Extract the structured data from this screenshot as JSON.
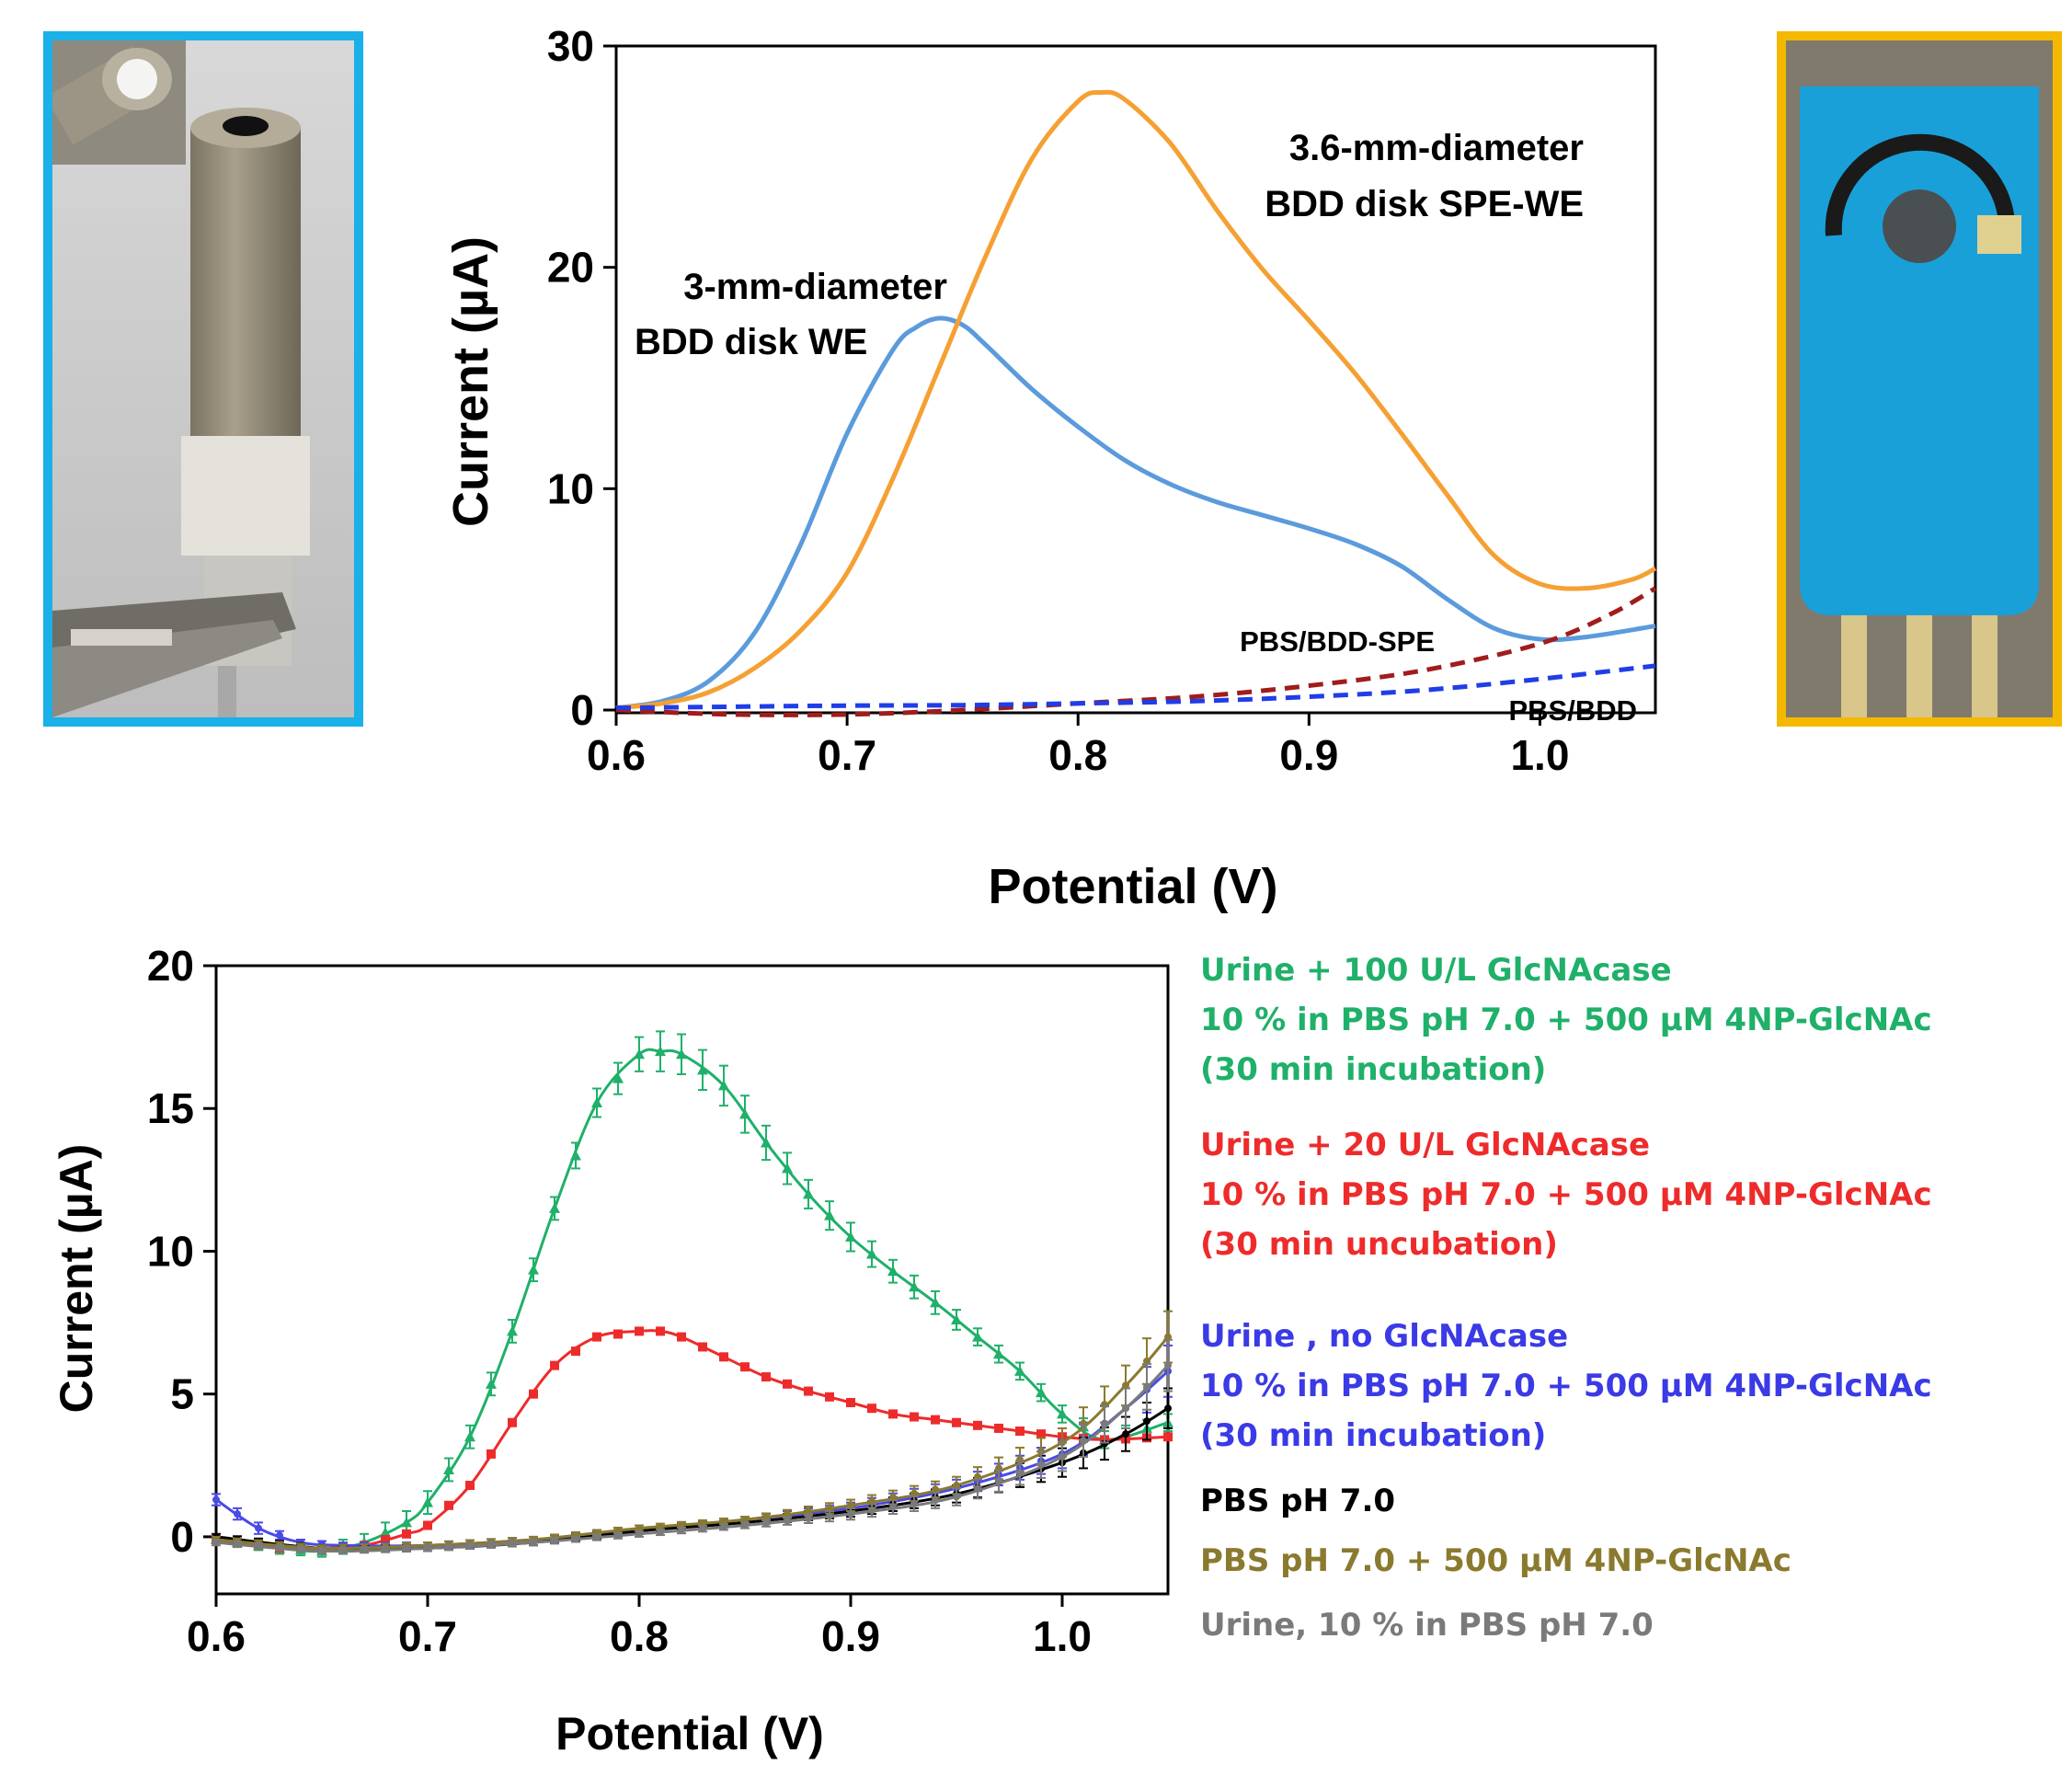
{
  "colors": {
    "left_frame": "#1ab0e8",
    "right_frame": "#f5b800",
    "bdd_we": "#5b9bdc",
    "bdd_spe": "#f5a033",
    "pbs_bdd_spe": "#a11c1c",
    "pbs_bdd": "#1f3de8",
    "urine_100": "#1fb06a",
    "urine_20": "#ee2b2b",
    "urine_no": "#4a4ae8",
    "pbs": "#000000",
    "pbs_np": "#8a7a2e",
    "urine_pbs": "#7a7a7a"
  },
  "legend": {
    "l1": "Urine + 100 U/L GlcNAcase",
    "l2": "10 % in PBS pH 7.0 + 500 µM 4NP-GlcNAc",
    "l3": "(30 min incubation)",
    "l4": "Urine + 20 U/L GlcNAcase",
    "l5": "10 % in PBS pH 7.0 + 500  µM 4NP-GlcNAc",
    "l6": "(30 min uncubation)",
    "l7": "Urine , no GlcNAcase",
    "l8": "10 % in PBS pH 7.0 + 500  µM 4NP-GlcNAc",
    "l9": "(30 min incubation)",
    "l10": "PBS pH 7.0",
    "l11": "PBS pH 7.0 + 500  µM 4NP-GlcNAc",
    "l12": "Urine, 10 % in PBS pH 7.0"
  },
  "chart_data": [
    {
      "type": "line",
      "xlabel": "Potential (V)",
      "ylabel": "Current (µA)",
      "xlim": [
        0.6,
        1.05
      ],
      "ylim": [
        0,
        30
      ],
      "xticks": [
        "0.6",
        "0.7",
        "0.8",
        "0.9",
        "1.0"
      ],
      "yticks": [
        "0",
        "10",
        "20",
        "30"
      ],
      "annotations": {
        "we_line1": "3-mm-diameter",
        "we_line2": "BDD disk WE",
        "spe_line1": "3.6-mm-diameter",
        "spe_line2": "BDD disk SPE-WE",
        "pbs_spe": "PBS/BDD-SPE",
        "pbs_bdd": "PBS/BDD"
      },
      "series": [
        {
          "name": "3-mm-diameter BDD disk WE",
          "style": "solid",
          "x": [
            0.6,
            0.62,
            0.64,
            0.66,
            0.68,
            0.7,
            0.72,
            0.73,
            0.74,
            0.75,
            0.76,
            0.78,
            0.8,
            0.82,
            0.84,
            0.86,
            0.88,
            0.9,
            0.92,
            0.94,
            0.96,
            0.98,
            1.0,
            1.02,
            1.05
          ],
          "y": [
            0.1,
            0.4,
            1.3,
            3.5,
            7.5,
            12.5,
            16.3,
            17.3,
            17.7,
            17.4,
            16.5,
            14.5,
            12.8,
            11.3,
            10.2,
            9.4,
            8.8,
            8.2,
            7.5,
            6.5,
            5.0,
            3.7,
            3.2,
            3.3,
            3.8
          ]
        },
        {
          "name": "3.6-mm-diameter BDD disk SPE-WE",
          "style": "solid",
          "x": [
            0.6,
            0.62,
            0.64,
            0.66,
            0.68,
            0.7,
            0.72,
            0.74,
            0.76,
            0.78,
            0.8,
            0.81,
            0.82,
            0.84,
            0.86,
            0.88,
            0.9,
            0.92,
            0.94,
            0.96,
            0.98,
            1.0,
            1.02,
            1.04,
            1.05
          ],
          "y": [
            0.1,
            0.3,
            0.8,
            1.9,
            3.6,
            6.2,
            10.5,
            15.5,
            20.5,
            24.9,
            27.5,
            27.9,
            27.6,
            25.6,
            22.6,
            19.9,
            17.6,
            15.2,
            12.5,
            9.7,
            7.0,
            5.7,
            5.5,
            5.9,
            6.4
          ]
        },
        {
          "name": "PBS/BDD-SPE",
          "style": "dashed",
          "x": [
            0.6,
            0.65,
            0.7,
            0.75,
            0.8,
            0.85,
            0.9,
            0.95,
            1.0,
            1.03,
            1.05
          ],
          "y": [
            0.0,
            -0.2,
            -0.2,
            0.0,
            0.3,
            0.6,
            1.1,
            1.8,
            3.0,
            4.3,
            5.5
          ]
        },
        {
          "name": "PBS/BDD",
          "style": "dashed",
          "x": [
            0.6,
            0.65,
            0.7,
            0.75,
            0.8,
            0.85,
            0.9,
            0.95,
            1.0,
            1.05
          ],
          "y": [
            0.1,
            0.15,
            0.2,
            0.22,
            0.3,
            0.4,
            0.6,
            0.9,
            1.4,
            2.0
          ]
        }
      ]
    },
    {
      "type": "line",
      "xlabel": "Potential (V)",
      "ylabel": "Current (µA)",
      "xlim": [
        0.6,
        1.05
      ],
      "ylim": [
        -2,
        20
      ],
      "xticks": [
        "0.6",
        "0.7",
        "0.8",
        "0.9",
        "1.0"
      ],
      "yticks": [
        "0",
        "5",
        "10",
        "15",
        "20"
      ],
      "series": [
        {
          "name": "Urine + 100 U/L GlcNAcase",
          "marker": "triangle",
          "x": [
            0.6,
            0.63,
            0.65,
            0.67,
            0.69,
            0.7,
            0.72,
            0.74,
            0.76,
            0.78,
            0.8,
            0.81,
            0.82,
            0.84,
            0.86,
            0.88,
            0.9,
            0.92,
            0.94,
            0.96,
            0.98,
            1.0,
            1.02,
            1.05
          ],
          "y": [
            -0.1,
            -0.4,
            -0.5,
            -0.2,
            0.5,
            1.2,
            3.5,
            7.2,
            11.5,
            15.2,
            16.9,
            17.0,
            16.9,
            15.8,
            13.8,
            12.0,
            10.5,
            9.3,
            8.2,
            7.0,
            5.8,
            4.3,
            3.4,
            4.0
          ],
          "err": [
            0.1,
            0.2,
            0.2,
            0.3,
            0.4,
            0.4,
            0.4,
            0.4,
            0.4,
            0.5,
            0.6,
            0.7,
            0.7,
            0.7,
            0.6,
            0.5,
            0.5,
            0.4,
            0.4,
            0.3,
            0.3,
            0.3,
            0.3,
            0.3
          ]
        },
        {
          "name": "Urine + 20 U/L GlcNAcase",
          "marker": "square",
          "x": [
            0.6,
            0.63,
            0.65,
            0.67,
            0.69,
            0.7,
            0.72,
            0.74,
            0.76,
            0.78,
            0.8,
            0.81,
            0.82,
            0.84,
            0.86,
            0.88,
            0.9,
            0.92,
            0.94,
            0.96,
            0.98,
            1.0,
            1.02,
            1.05
          ],
          "y": [
            -0.1,
            -0.4,
            -0.4,
            -0.3,
            0.1,
            0.4,
            1.8,
            4.0,
            6.0,
            7.0,
            7.2,
            7.2,
            7.0,
            6.3,
            5.6,
            5.1,
            4.7,
            4.3,
            4.1,
            3.9,
            3.7,
            3.5,
            3.4,
            3.5
          ],
          "err": [
            0.1,
            0.1,
            0.1,
            0.1,
            0.1,
            0.1,
            0.1,
            0.1,
            0.1,
            0.1,
            0.1,
            0.1,
            0.1,
            0.1,
            0.1,
            0.1,
            0.1,
            0.1,
            0.1,
            0.1,
            0.1,
            0.1,
            0.1,
            0.1
          ]
        },
        {
          "name": "Urine , no GlcNAcase",
          "marker": "circle",
          "x": [
            0.6,
            0.62,
            0.64,
            0.66,
            0.7,
            0.75,
            0.8,
            0.85,
            0.9,
            0.95,
            1.0,
            1.03,
            1.05
          ],
          "y": [
            1.3,
            0.3,
            -0.2,
            -0.3,
            -0.3,
            -0.1,
            0.2,
            0.6,
            1.0,
            1.7,
            2.9,
            4.5,
            5.8
          ],
          "err": [
            0.2,
            0.2,
            0.1,
            0.1,
            0.1,
            0.1,
            0.1,
            0.1,
            0.2,
            0.3,
            0.5,
            0.7,
            0.9
          ]
        },
        {
          "name": "PBS pH 7.0",
          "marker": "circle",
          "x": [
            0.6,
            0.65,
            0.7,
            0.75,
            0.8,
            0.85,
            0.9,
            0.95,
            1.0,
            1.03,
            1.05
          ],
          "y": [
            0.0,
            -0.4,
            -0.4,
            -0.2,
            0.2,
            0.5,
            0.9,
            1.5,
            2.6,
            3.6,
            4.5
          ],
          "err": [
            0.1,
            0.1,
            0.1,
            0.1,
            0.1,
            0.1,
            0.2,
            0.3,
            0.5,
            0.6,
            0.7
          ]
        },
        {
          "name": "PBS pH 7.0 + 500  µM 4NP-GlcNAc",
          "marker": "circle",
          "x": [
            0.6,
            0.65,
            0.7,
            0.75,
            0.8,
            0.85,
            0.9,
            0.95,
            1.0,
            1.03,
            1.05
          ],
          "y": [
            -0.1,
            -0.4,
            -0.3,
            -0.1,
            0.3,
            0.6,
            1.1,
            1.8,
            3.3,
            5.3,
            7.0
          ],
          "err": [
            0.1,
            0.1,
            0.1,
            0.1,
            0.1,
            0.1,
            0.2,
            0.3,
            0.5,
            0.7,
            0.9
          ]
        },
        {
          "name": "Urine, 10 % in PBS pH 7.0",
          "marker": "circle",
          "x": [
            0.6,
            0.65,
            0.7,
            0.75,
            0.8,
            0.85,
            0.9,
            0.95,
            1.0,
            1.03,
            1.05
          ],
          "y": [
            -0.2,
            -0.5,
            -0.4,
            -0.2,
            0.1,
            0.4,
            0.8,
            1.4,
            2.8,
            4.5,
            6.0
          ],
          "err": [
            0.1,
            0.1,
            0.1,
            0.1,
            0.1,
            0.1,
            0.2,
            0.3,
            0.5,
            0.7,
            0.9
          ]
        }
      ]
    }
  ]
}
